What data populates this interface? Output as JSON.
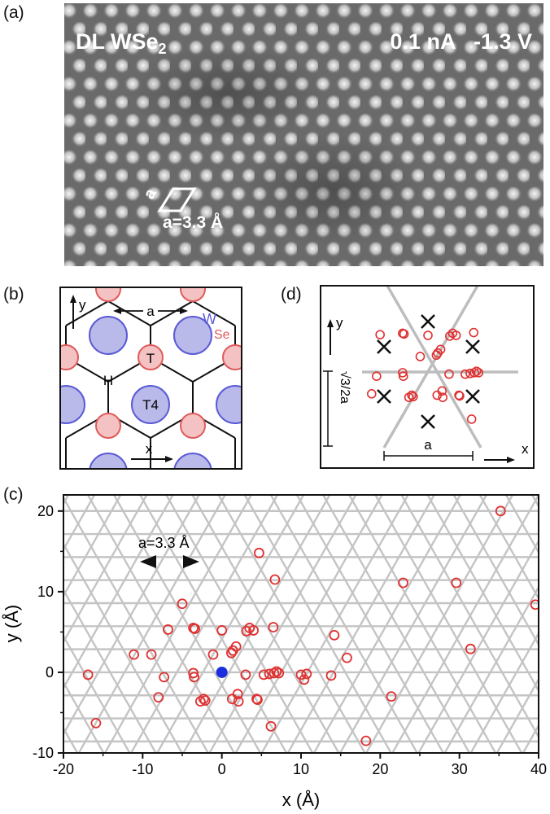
{
  "panel_a": {
    "label": "(a)",
    "title_left": "DL WSe",
    "title_left_sub": "2",
    "title_right": "0.1 nA   -1.3 V",
    "cell_side_label": "a",
    "lattice_label": "a=3.3 Å"
  },
  "panel_b": {
    "label": "(b)",
    "y_axis": "y",
    "x_axis": "x",
    "a_label": "a",
    "w_label": "W",
    "se_label": "Se",
    "site_T": "T",
    "site_H": "H",
    "site_T4": "T4",
    "colors": {
      "w_fill": "#b9b9ea",
      "w_stroke": "#5a5ad6",
      "se_fill": "#f4c2c2",
      "se_stroke": "#e05a5a"
    }
  },
  "panel_d": {
    "label": "(d)",
    "y_axis": "y",
    "x_axis": "x",
    "height_label": "√3/2a",
    "a_label": "a"
  },
  "panel_c": {
    "label": "(c)",
    "annotation": "a=3.3 Å",
    "colors": {
      "marker": "#e03030",
      "center": "#1a2ee0",
      "grid": "#c4c4c4"
    }
  },
  "chart_data": {
    "type": "scatter",
    "xlabel": "x (Å)",
    "ylabel": "y (Å)",
    "xlim": [
      -20,
      40
    ],
    "ylim": [
      -10,
      22
    ],
    "xticks": [
      -20,
      -10,
      0,
      10,
      20,
      30,
      40
    ],
    "yticks": [
      -10,
      0,
      10,
      20
    ],
    "grid": "triangular lattice, a = 3.3 Å",
    "series": [
      {
        "marker": "open red circle",
        "points": [
          [
            -16.9,
            -0.3
          ],
          [
            -15.9,
            -6.3
          ],
          [
            -11.1,
            2.2
          ],
          [
            -8.9,
            2.2
          ],
          [
            -8.0,
            -3.1
          ],
          [
            -7.3,
            -0.6
          ],
          [
            -6.8,
            5.3
          ],
          [
            -5.0,
            8.5
          ],
          [
            -3.6,
            5.5
          ],
          [
            -3.4,
            5.4
          ],
          [
            -3.6,
            -0.1
          ],
          [
            -3.5,
            -0.6
          ],
          [
            -2.7,
            -3.6
          ],
          [
            -2.3,
            -3.3
          ],
          [
            -2.1,
            -3.5
          ],
          [
            -1.1,
            2.2
          ],
          [
            0.0,
            5.2
          ],
          [
            1.2,
            2.4
          ],
          [
            1.4,
            2.7
          ],
          [
            1.8,
            3.2
          ],
          [
            1.3,
            -3.3
          ],
          [
            2.0,
            -2.7
          ],
          [
            2.1,
            -3.6
          ],
          [
            3.0,
            -0.3
          ],
          [
            3.1,
            5.1
          ],
          [
            3.5,
            5.5
          ],
          [
            4.0,
            5.2
          ],
          [
            4.4,
            -3.3
          ],
          [
            4.5,
            -3.4
          ],
          [
            4.7,
            14.8
          ],
          [
            5.3,
            -0.3
          ],
          [
            6.2,
            -6.7
          ],
          [
            6.0,
            -0.2
          ],
          [
            6.5,
            5.6
          ],
          [
            6.6,
            -0.1
          ],
          [
            6.7,
            11.5
          ],
          [
            6.9,
            0.1
          ],
          [
            7.2,
            -0.1
          ],
          [
            10.0,
            -0.3
          ],
          [
            10.4,
            -0.9
          ],
          [
            10.7,
            -0.2
          ],
          [
            13.8,
            -0.4
          ],
          [
            14.2,
            4.6
          ],
          [
            15.8,
            1.8
          ],
          [
            18.2,
            -8.5
          ],
          [
            21.4,
            -3.0
          ],
          [
            22.9,
            11.1
          ],
          [
            29.6,
            11.1
          ],
          [
            31.4,
            2.9
          ],
          [
            35.2,
            20.0
          ],
          [
            39.6,
            8.4
          ]
        ]
      },
      {
        "marker": "filled blue circle",
        "points": [
          [
            0.0,
            0.0
          ]
        ]
      }
    ]
  }
}
